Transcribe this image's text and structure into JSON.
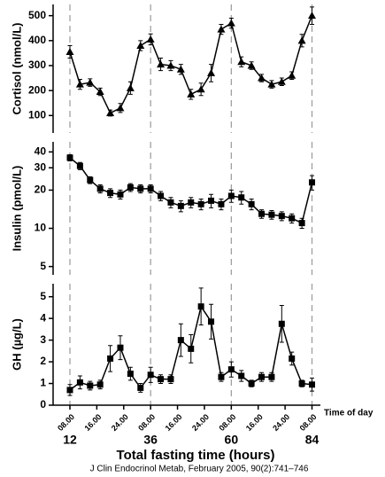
{
  "chart_data": [
    {
      "type": "line",
      "ylabel": "Cortisol (nmol/L)",
      "marker": "triangle",
      "color": "#000000",
      "x": [
        12,
        15,
        18,
        21,
        24,
        27,
        30,
        33,
        36,
        39,
        42,
        45,
        48,
        51,
        54,
        57,
        60,
        63,
        66,
        69,
        72,
        75,
        78,
        81,
        84
      ],
      "values": [
        355,
        225,
        232,
        195,
        110,
        130,
        210,
        380,
        405,
        305,
        300,
        285,
        185,
        205,
        270,
        445,
        470,
        315,
        300,
        250,
        225,
        235,
        260,
        400,
        500
      ],
      "errors": [
        25,
        20,
        15,
        15,
        12,
        18,
        25,
        20,
        22,
        25,
        20,
        20,
        20,
        25,
        35,
        20,
        20,
        20,
        15,
        15,
        15,
        15,
        15,
        25,
        35
      ],
      "xlim": [
        7,
        86.5
      ],
      "ylim": [
        30,
        545
      ],
      "yticks": [
        100,
        200,
        300,
        400,
        500
      ],
      "vlines": [
        12,
        36,
        60,
        84
      ]
    },
    {
      "type": "line",
      "ylabel": "Insulin (pmol/L)",
      "marker": "square",
      "color": "#000000",
      "log_scale": true,
      "x": [
        12,
        15,
        18,
        21,
        24,
        27,
        30,
        33,
        36,
        39,
        42,
        45,
        48,
        51,
        54,
        57,
        60,
        63,
        66,
        69,
        72,
        75,
        78,
        81,
        84
      ],
      "values": [
        36,
        31,
        24,
        20.5,
        19,
        18.5,
        21,
        20.5,
        20.5,
        18,
        16,
        15,
        16,
        15.5,
        16.5,
        15.5,
        18,
        17.5,
        15.5,
        13,
        12.8,
        12.5,
        12,
        11,
        23
      ],
      "errors": [
        2,
        2,
        1.5,
        1.5,
        1.5,
        1.5,
        1.5,
        1.5,
        1.5,
        1.5,
        1.5,
        1.5,
        1.5,
        1.5,
        2,
        1.5,
        2,
        2,
        1.5,
        1,
        1,
        1,
        1,
        1,
        3
      ],
      "xlim": [
        7,
        86.5
      ],
      "ylim": [
        4.3,
        48
      ],
      "yticks": [
        5,
        10,
        20,
        30,
        40
      ],
      "vlines": [
        12,
        36,
        60,
        84
      ]
    },
    {
      "type": "line",
      "ylabel": "GH (µg/L)",
      "marker": "square",
      "color": "#000000",
      "x": [
        12,
        15,
        18,
        21,
        24,
        27,
        30,
        33,
        36,
        39,
        42,
        45,
        48,
        51,
        54,
        57,
        60,
        63,
        66,
        69,
        72,
        75,
        78,
        81,
        84
      ],
      "values": [
        0.7,
        1.05,
        0.9,
        0.95,
        2.15,
        2.65,
        1.45,
        0.8,
        1.4,
        1.2,
        1.2,
        3.0,
        2.6,
        4.55,
        3.85,
        1.3,
        1.65,
        1.35,
        1.0,
        1.3,
        1.3,
        3.75,
        2.15,
        1.0,
        0.95
      ],
      "errors": [
        0.25,
        0.3,
        0.2,
        0.2,
        0.6,
        0.55,
        0.3,
        0.2,
        0.35,
        0.2,
        0.2,
        0.75,
        0.65,
        0.85,
        0.8,
        0.2,
        0.35,
        0.25,
        0.15,
        0.2,
        0.2,
        0.85,
        0.3,
        0.15,
        0.3
      ],
      "xlim": [
        7,
        86.5
      ],
      "ylim": [
        0,
        5.6
      ],
      "yticks": [
        0,
        1,
        2,
        3,
        4,
        5
      ],
      "vlines": [
        12,
        36,
        60,
        84
      ],
      "xticks": [
        12,
        36,
        60,
        84
      ],
      "xlabel": "Total fasting time (hours)",
      "time_label": "Time of day",
      "time_ticks": [
        {
          "value": 12,
          "label": "08.00"
        },
        {
          "value": 20,
          "label": "16.00"
        },
        {
          "value": 28,
          "label": "24.00"
        },
        {
          "value": 36,
          "label": "08.00"
        },
        {
          "value": 44,
          "label": "16.00"
        },
        {
          "value": 52,
          "label": "24.00"
        },
        {
          "value": 60,
          "label": "08.00"
        },
        {
          "value": 68,
          "label": "16.00"
        },
        {
          "value": 76,
          "label": "24.00"
        },
        {
          "value": 84,
          "label": "08.00"
        }
      ]
    }
  ],
  "citation": "J Clin Endocrinol Metab, February 2005, 90(2):741–746"
}
